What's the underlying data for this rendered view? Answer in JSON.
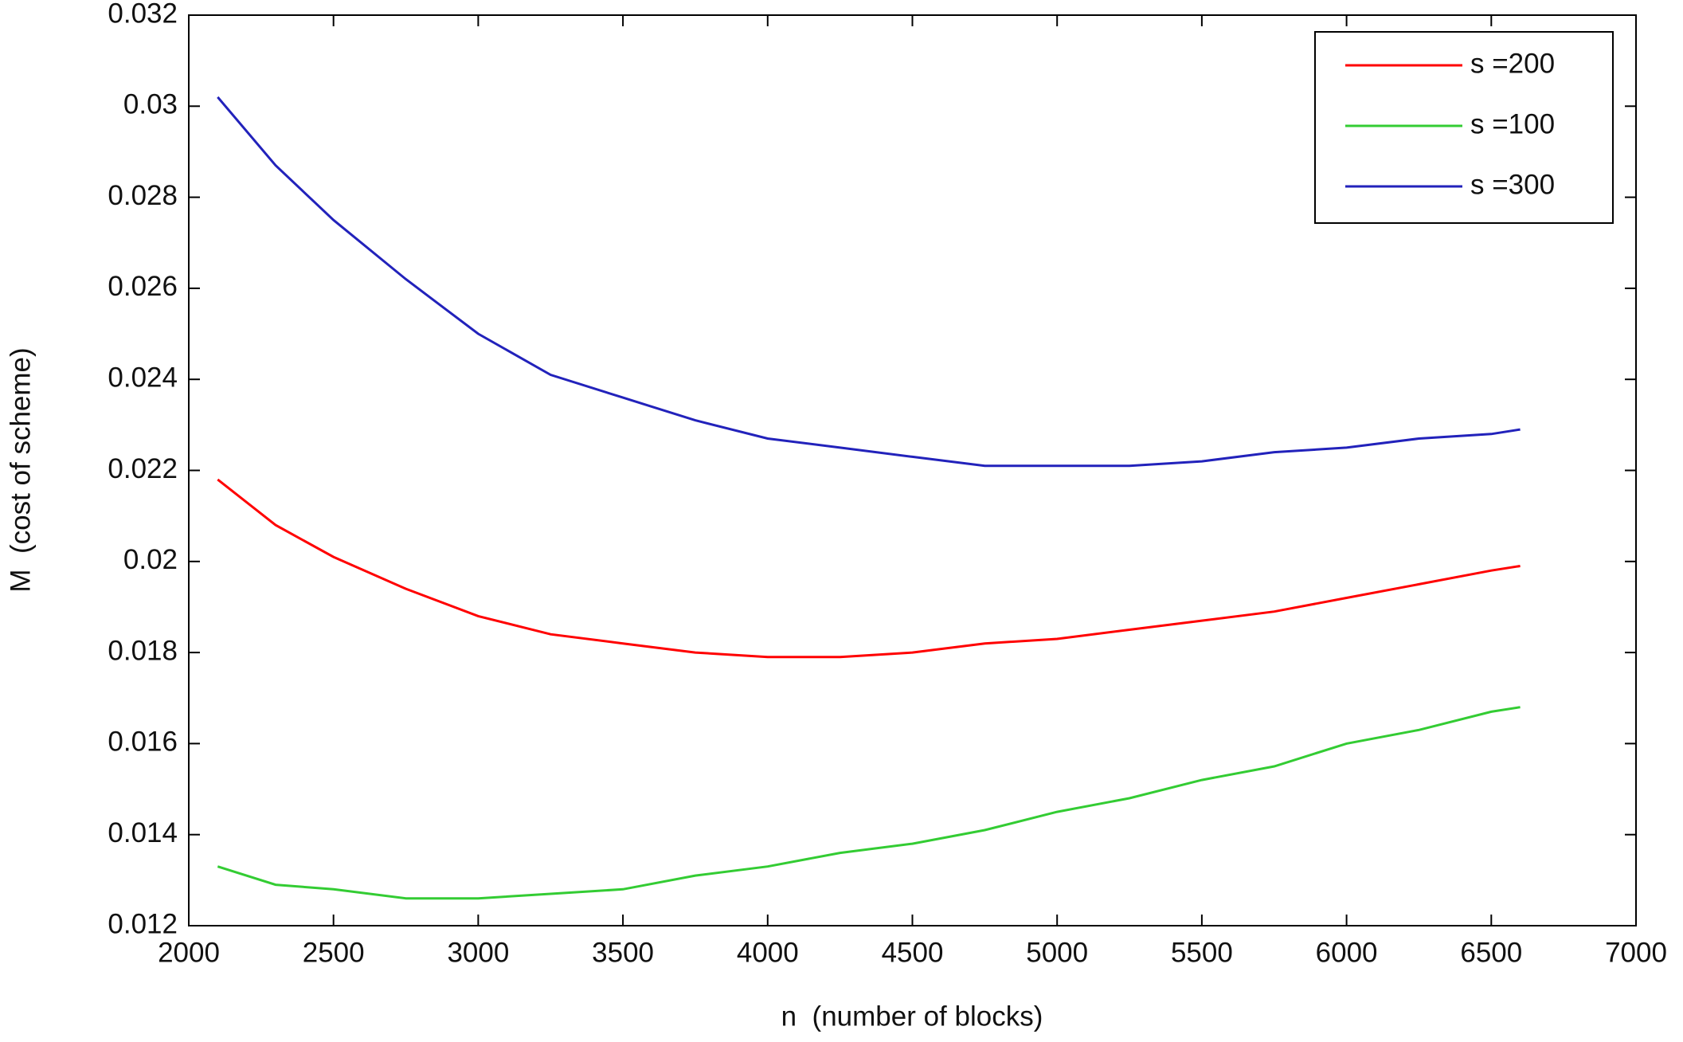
{
  "chart_data": {
    "type": "line",
    "x": [
      2100,
      2300,
      2500,
      2750,
      3000,
      3250,
      3500,
      3750,
      4000,
      4250,
      4500,
      4750,
      5000,
      5250,
      5500,
      5750,
      6000,
      6250,
      6500,
      6600
    ],
    "series": [
      {
        "name": "s =200",
        "color": "#ff0000",
        "values": [
          0.0218,
          0.0208,
          0.0201,
          0.0194,
          0.0188,
          0.0184,
          0.0182,
          0.018,
          0.0179,
          0.0179,
          0.018,
          0.0182,
          0.0183,
          0.0185,
          0.0187,
          0.0189,
          0.0192,
          0.0195,
          0.0198,
          0.0199
        ]
      },
      {
        "name": "s =100",
        "color": "#33cc33",
        "values": [
          0.0133,
          0.0129,
          0.0128,
          0.0126,
          0.0126,
          0.0127,
          0.0128,
          0.0131,
          0.0133,
          0.0136,
          0.0138,
          0.0141,
          0.0145,
          0.0148,
          0.0152,
          0.0155,
          0.016,
          0.0163,
          0.0167,
          0.0168
        ]
      },
      {
        "name": "s =300",
        "color": "#2222bb",
        "values": [
          0.0302,
          0.0287,
          0.0275,
          0.0262,
          0.025,
          0.0241,
          0.0236,
          0.0231,
          0.0227,
          0.0225,
          0.0223,
          0.0221,
          0.0221,
          0.0221,
          0.0222,
          0.0224,
          0.0225,
          0.0227,
          0.0228,
          0.0229
        ]
      }
    ],
    "xlabel": "n  (number of blocks)",
    "ylabel": "M  (cost of scheme)",
    "xlim": [
      2000,
      7000
    ],
    "xticks": [
      2000,
      2500,
      3000,
      3500,
      4000,
      4500,
      5000,
      5500,
      6000,
      6500,
      7000
    ],
    "ylim": [
      0.012,
      0.032
    ],
    "yticks": [
      0.012,
      0.014,
      0.016,
      0.018,
      0.02,
      0.022,
      0.024,
      0.026,
      0.028,
      0.03,
      0.032
    ],
    "legend": "upper right"
  }
}
